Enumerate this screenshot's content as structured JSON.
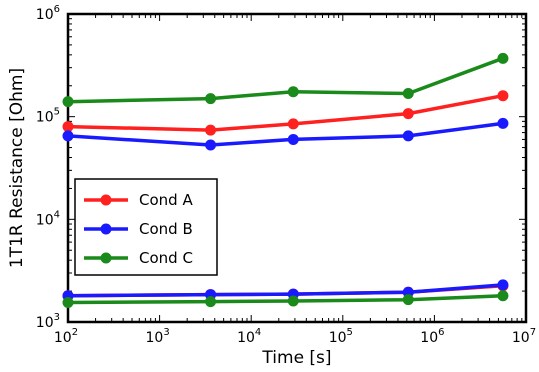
{
  "chart_data": {
    "type": "line",
    "title": "",
    "xlabel": "Time [s]",
    "ylabel": "1T1R Resistance [Ohm]",
    "xscale": "log",
    "yscale": "log",
    "xlim": [
      100,
      10000000
    ],
    "ylim": [
      1000,
      1000000
    ],
    "grid": false,
    "legend_position": "lower-left",
    "x_tick_labels": [
      {
        "base": "10",
        "exp": "2"
      },
      {
        "base": "10",
        "exp": "3"
      },
      {
        "base": "10",
        "exp": "4"
      },
      {
        "base": "10",
        "exp": "5"
      },
      {
        "base": "10",
        "exp": "6"
      },
      {
        "base": "10",
        "exp": "7"
      }
    ],
    "y_tick_labels": [
      {
        "base": "10",
        "exp": "3"
      },
      {
        "base": "10",
        "exp": "4"
      },
      {
        "base": "10",
        "exp": "5"
      },
      {
        "base": "10",
        "exp": "6"
      }
    ],
    "series": [
      {
        "name": "Cond A",
        "color": "#ff2020",
        "segments": [
          {
            "x": [
              100,
              3600,
              28800,
              518400,
              5600000
            ],
            "y": [
              80000,
              74000,
              85000,
              107000,
              160000
            ]
          },
          {
            "x": [
              100,
              3600,
              28800,
              518400,
              5600000
            ],
            "y": [
              1800,
              1850,
              1870,
              1950,
              2250
            ]
          }
        ]
      },
      {
        "name": "Cond B",
        "color": "#1a1aff",
        "segments": [
          {
            "x": [
              100,
              3600,
              28800,
              518400,
              5600000
            ],
            "y": [
              65000,
              53000,
              60000,
              65000,
              86000
            ]
          },
          {
            "x": [
              100,
              3600,
              28800,
              518400,
              5600000
            ],
            "y": [
              1800,
              1850,
              1870,
              1950,
              2300
            ]
          }
        ]
      },
      {
        "name": "Cond C",
        "color": "#1a8a1a",
        "segments": [
          {
            "x": [
              100,
              3600,
              28800,
              518400,
              5600000
            ],
            "y": [
              140000,
              150000,
              175000,
              168000,
              370000
            ]
          },
          {
            "x": [
              100,
              3600,
              28800,
              518400,
              5600000
            ],
            "y": [
              1550,
              1580,
              1600,
              1650,
              1800
            ]
          }
        ]
      }
    ]
  }
}
